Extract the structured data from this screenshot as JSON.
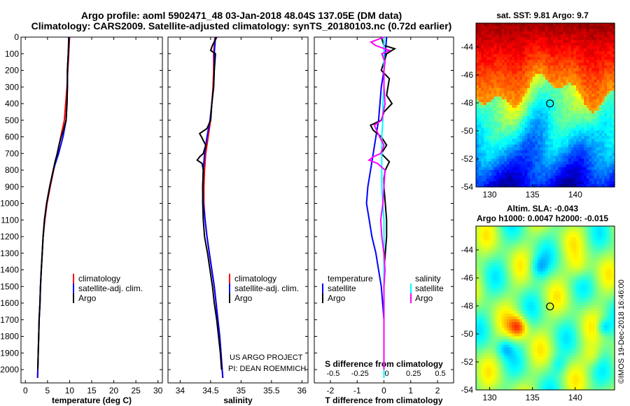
{
  "header": {
    "title_line1": "Argo profile: aoml 5902471_48 03-Jan-2018 48.04S 137.05E (DM data)",
    "title_line2": "Climatology: CARS2009. Satellite-adjusted climatology: synTS_20180103.nc (0.72d earlier)"
  },
  "colors": {
    "climatology": "#ff0000",
    "satellite": "#0000ff",
    "argo": "#000000",
    "salinity_satellite": "#00ffff",
    "salinity_argo": "#ff00ff"
  },
  "legend_profile": {
    "climatology": "climatology",
    "satellite_adj": "satellite-adj. clim.",
    "argo": "Argo"
  },
  "legend_diff": {
    "temperature": "temperature",
    "salinity": "salinity",
    "satellite": "satellite",
    "argo": "Argo"
  },
  "credits": {
    "project": "US ARGO PROJECT",
    "pi": "PI: DEAN ROEMMICH"
  },
  "maps": {
    "sst_title": "sat. SST: 9.81 Argo: 9.7",
    "sla_title1": "Altim. SLA: -0.043",
    "sla_title2": "Argo h1000: 0.0047 h2000: -0.015",
    "lat_ticks": [
      "-44",
      "-46",
      "-48",
      "-50",
      "-52",
      "-54"
    ],
    "lon_ticks": [
      "130",
      "135",
      "140"
    ],
    "lon_values": [
      130,
      135,
      140
    ],
    "lat_values": [
      -44,
      -46,
      -48,
      -50,
      -52,
      -54
    ],
    "float_lon": 137.05,
    "float_lat": -48.04,
    "watermark": "©IMOS 19-Dec-2018 16:46:00"
  },
  "chart_data": [
    {
      "type": "line",
      "name": "temperature",
      "xlabel": "temperature (deg C)",
      "ylabel": "",
      "xlim": [
        -1,
        31
      ],
      "ylim": [
        2080,
        0
      ],
      "xticks": [
        0,
        5,
        10,
        15,
        20,
        25,
        30
      ],
      "yticks": [
        0,
        100,
        200,
        300,
        400,
        500,
        600,
        700,
        800,
        900,
        1000,
        1100,
        1200,
        1300,
        1400,
        1500,
        1600,
        1700,
        1800,
        1900,
        2000
      ],
      "series": [
        {
          "name": "climatology",
          "color": "#ff0000",
          "depth": [
            0,
            100,
            200,
            300,
            400,
            500,
            600,
            700,
            800,
            900,
            1000,
            1100,
            1200,
            1300,
            1400,
            1500,
            1600,
            1700,
            1800,
            1900,
            2000,
            2050
          ],
          "values": [
            10.0,
            9.8,
            9.6,
            9.4,
            9.1,
            8.8,
            8.0,
            7.2,
            6.4,
            5.6,
            4.9,
            4.4,
            4.0,
            3.8,
            3.6,
            3.4,
            3.3,
            3.1,
            3.0,
            2.9,
            2.8,
            2.75
          ]
        },
        {
          "name": "satellite-adj. clim.",
          "color": "#0000ff",
          "depth": [
            0,
            100,
            200,
            300,
            400,
            500,
            600,
            700,
            800,
            900,
            1000,
            1100,
            1200,
            1300,
            1400,
            1500,
            1600,
            1700,
            1800,
            1900,
            2000,
            2050
          ],
          "values": [
            9.9,
            9.7,
            9.5,
            9.5,
            9.4,
            9.2,
            8.5,
            7.5,
            6.3,
            5.5,
            4.8,
            4.3,
            4.0,
            3.8,
            3.6,
            3.4,
            3.3,
            3.1,
            3.0,
            2.9,
            2.8,
            2.75
          ]
        },
        {
          "name": "Argo",
          "color": "#000000",
          "depth": [
            0,
            100,
            200,
            300,
            400,
            500,
            560,
            600,
            650,
            700,
            750,
            800,
            900,
            1000,
            1100,
            1200,
            1300,
            1400,
            1500,
            1600,
            1700,
            1800,
            1900,
            2000
          ],
          "values": [
            9.8,
            9.7,
            9.5,
            9.5,
            9.4,
            9.2,
            8.6,
            8.1,
            7.6,
            7.2,
            6.7,
            6.3,
            5.5,
            4.8,
            4.3,
            4.0,
            3.8,
            3.6,
            3.4,
            3.3,
            3.1,
            3.0,
            2.9,
            2.8
          ]
        }
      ]
    },
    {
      "type": "line",
      "name": "salinity",
      "xlabel": "salinity",
      "ylabel": "",
      "xlim": [
        33.8,
        36.1
      ],
      "ylim": [
        2080,
        0
      ],
      "xticks": [
        34,
        34.5,
        35,
        35.5,
        36
      ],
      "xticklabels": [
        "34",
        "34.5",
        "35",
        "35.5",
        "36"
      ],
      "series": [
        {
          "name": "climatology",
          "color": "#ff0000",
          "depth": [
            0,
            100,
            200,
            300,
            400,
            500,
            600,
            700,
            800,
            900,
            1000,
            1100,
            1200,
            1300,
            1400,
            1500,
            1600,
            1700,
            1800,
            1900,
            2000,
            2050
          ],
          "values": [
            34.57,
            34.55,
            34.55,
            34.54,
            34.52,
            34.5,
            34.46,
            34.42,
            34.4,
            34.39,
            34.39,
            34.41,
            34.44,
            34.48,
            34.52,
            34.56,
            34.59,
            34.62,
            34.65,
            34.67,
            34.69,
            34.7
          ]
        },
        {
          "name": "satellite-adj. clim.",
          "color": "#0000ff",
          "depth": [
            0,
            100,
            200,
            300,
            400,
            500,
            600,
            700,
            800,
            900,
            1000,
            1100,
            1200,
            1300,
            1400,
            1500,
            1600,
            1700,
            1800,
            1900,
            2000,
            2050
          ],
          "values": [
            34.58,
            34.56,
            34.56,
            34.55,
            34.52,
            34.49,
            34.44,
            34.4,
            34.38,
            34.37,
            34.38,
            34.41,
            34.44,
            34.48,
            34.52,
            34.56,
            34.59,
            34.62,
            34.65,
            34.67,
            34.69,
            34.7
          ]
        },
        {
          "name": "Argo",
          "color": "#000000",
          "depth": [
            0,
            50,
            80,
            100,
            150,
            200,
            300,
            400,
            500,
            550,
            580,
            600,
            650,
            700,
            720,
            740,
            760,
            800,
            900,
            1000,
            1100,
            1200,
            1300,
            1400,
            1500,
            1600,
            1700,
            1800,
            1900,
            2000
          ],
          "values": [
            34.6,
            34.53,
            34.5,
            34.58,
            34.57,
            34.56,
            34.55,
            34.52,
            34.5,
            34.44,
            34.32,
            34.35,
            34.42,
            34.38,
            34.32,
            34.28,
            34.36,
            34.38,
            34.37,
            34.37,
            34.38,
            34.4,
            34.45,
            34.49,
            34.53,
            34.56,
            34.6,
            34.63,
            34.66,
            34.68
          ]
        }
      ]
    },
    {
      "type": "line",
      "name": "difference",
      "xlabel": "T difference from climatology",
      "x2label": "S difference from climatology",
      "ylabel": "",
      "xlim": [
        -2.6,
        2.6
      ],
      "ylim": [
        2080,
        0
      ],
      "xticks": [
        -2,
        -1,
        0,
        1,
        2
      ],
      "x2ticks": [
        -0.5,
        -0.25,
        0,
        0.25,
        0.5
      ],
      "x2ticklabels": [
        "-0.5",
        "-0.25",
        "0",
        "0.25",
        "0.5"
      ],
      "series": [
        {
          "name": "temperature satellite",
          "color": "#0000ff",
          "depth": [
            0,
            100,
            200,
            300,
            400,
            500,
            600,
            700,
            800,
            900,
            1000,
            1100,
            1200,
            1300,
            1400,
            1500,
            1600,
            1700,
            1800,
            1900,
            2000,
            2050
          ],
          "values": [
            0.1,
            0.05,
            0.0,
            -0.1,
            -0.15,
            -0.2,
            -0.3,
            -0.4,
            -0.5,
            -0.6,
            -0.65,
            -0.55,
            -0.45,
            -0.3,
            -0.2,
            -0.1,
            -0.05,
            0.0,
            0.0,
            0.0,
            0.0,
            0.0
          ]
        },
        {
          "name": "temperature Argo",
          "color": "#000000",
          "depth": [
            0,
            50,
            70,
            100,
            150,
            200,
            250,
            300,
            350,
            400,
            450,
            500,
            530,
            560,
            600,
            650,
            700,
            750,
            800,
            850,
            900,
            1000,
            1100,
            1200,
            1300,
            1400,
            1500,
            1600,
            1700,
            1800,
            1900,
            2000
          ],
          "values": [
            -0.1,
            0.0,
            0.4,
            0.1,
            0.0,
            -0.1,
            0.2,
            0.15,
            0.1,
            0.3,
            0.0,
            -0.1,
            -0.5,
            -0.4,
            -0.1,
            0.1,
            -0.1,
            0.2,
            0.05,
            0.0,
            0.0,
            0.05,
            0.1,
            0.1,
            0.05,
            0.0,
            0.0,
            0.0,
            0.0,
            0.0,
            0.0,
            0.0
          ]
        },
        {
          "name": "salinity satellite",
          "color": "#00ffff",
          "depth": [
            0,
            100,
            200,
            300,
            400,
            500,
            600,
            700,
            800,
            900,
            1000,
            1100,
            1200,
            1300,
            1400,
            1500,
            1600,
            1700,
            1800,
            1900,
            2000,
            2050
          ],
          "values": [
            0.0,
            0.0,
            0.0,
            0.0,
            -0.01,
            -0.01,
            -0.02,
            -0.02,
            -0.02,
            -0.02,
            -0.01,
            0.0,
            0.0,
            0.0,
            0.0,
            0.0,
            0.0,
            0.0,
            0.0,
            0.0,
            0.0,
            0.0
          ]
        },
        {
          "name": "salinity Argo",
          "color": "#ff00ff",
          "depth": [
            0,
            30,
            50,
            80,
            100,
            150,
            200,
            300,
            400,
            500,
            530,
            560,
            600,
            650,
            700,
            720,
            740,
            760,
            800,
            900,
            1000,
            1100,
            1200,
            1300,
            1400,
            1500,
            1600,
            1700,
            1800,
            1900,
            2000
          ],
          "values": [
            0.0,
            -0.12,
            -0.08,
            0.05,
            -0.02,
            0.01,
            0.0,
            0.0,
            0.01,
            -0.02,
            -0.09,
            -0.07,
            -0.04,
            0.0,
            -0.03,
            -0.1,
            -0.14,
            -0.06,
            0.01,
            0.0,
            -0.01,
            -0.03,
            -0.02,
            0.0,
            0.01,
            0.0,
            0.0,
            0.0,
            0.0,
            0.0,
            0.0
          ]
        }
      ]
    }
  ]
}
